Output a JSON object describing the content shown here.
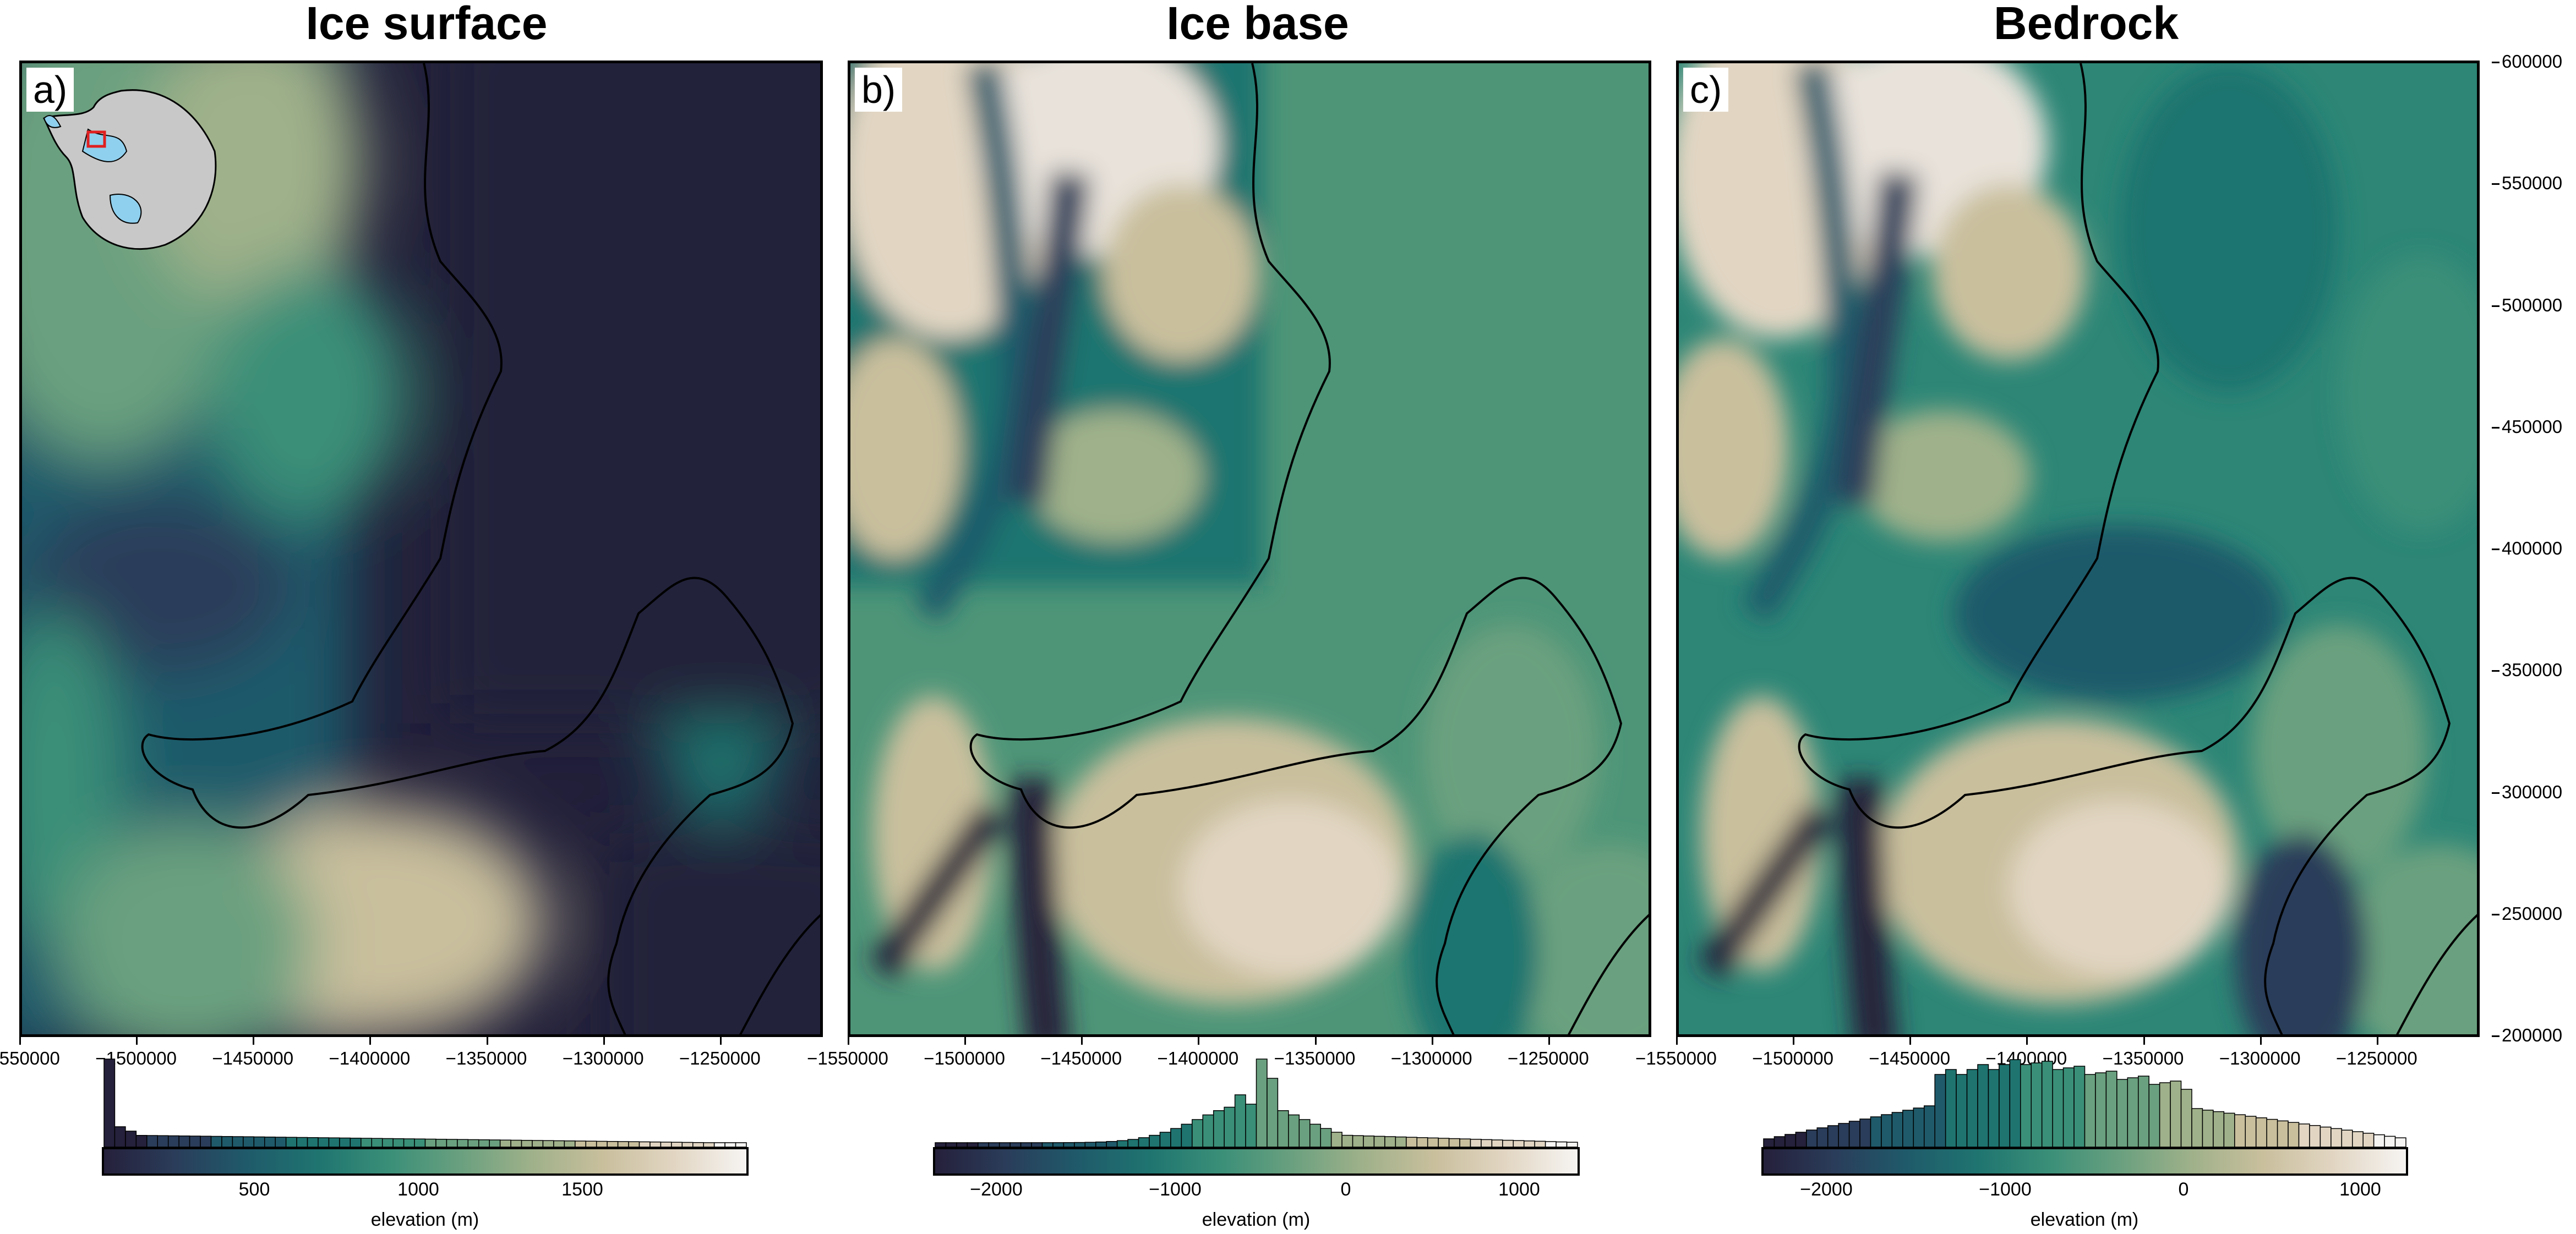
{
  "panels": [
    {
      "title": "Ice surface",
      "label": "a)",
      "colorbar_ticks": [
        "500",
        "1000",
        "1500"
      ],
      "colorbar_label": "elevation (m)"
    },
    {
      "title": "Ice base",
      "label": "b)",
      "colorbar_ticks": [
        "−2000",
        "−1000",
        "0",
        "1000"
      ],
      "colorbar_label": "elevation (m)"
    },
    {
      "title": "Bedrock",
      "label": "c)",
      "colorbar_ticks": [
        "−2000",
        "−1000",
        "0",
        "1000"
      ],
      "colorbar_label": "elevation (m)"
    }
  ],
  "x_ticks": [
    "−1550000",
    "−1500000",
    "−1450000",
    "−1400000",
    "−1350000",
    "−1300000",
    "−1250000"
  ],
  "y_ticks": [
    "600000",
    "550000",
    "500000",
    "450000",
    "400000",
    "350000",
    "300000",
    "250000",
    "200000"
  ],
  "colormap": [
    "#25203b",
    "#2a3d5a",
    "#1f5a6a",
    "#1f7470",
    "#3a8f78",
    "#6aa07f",
    "#9fb18a",
    "#c9bf9d",
    "#e2d6c3",
    "#f6f4f2"
  ],
  "inset": {
    "land_color": "#c8c8c8",
    "shelf_color": "#8fd0ee",
    "box_color": "#e02020"
  }
}
